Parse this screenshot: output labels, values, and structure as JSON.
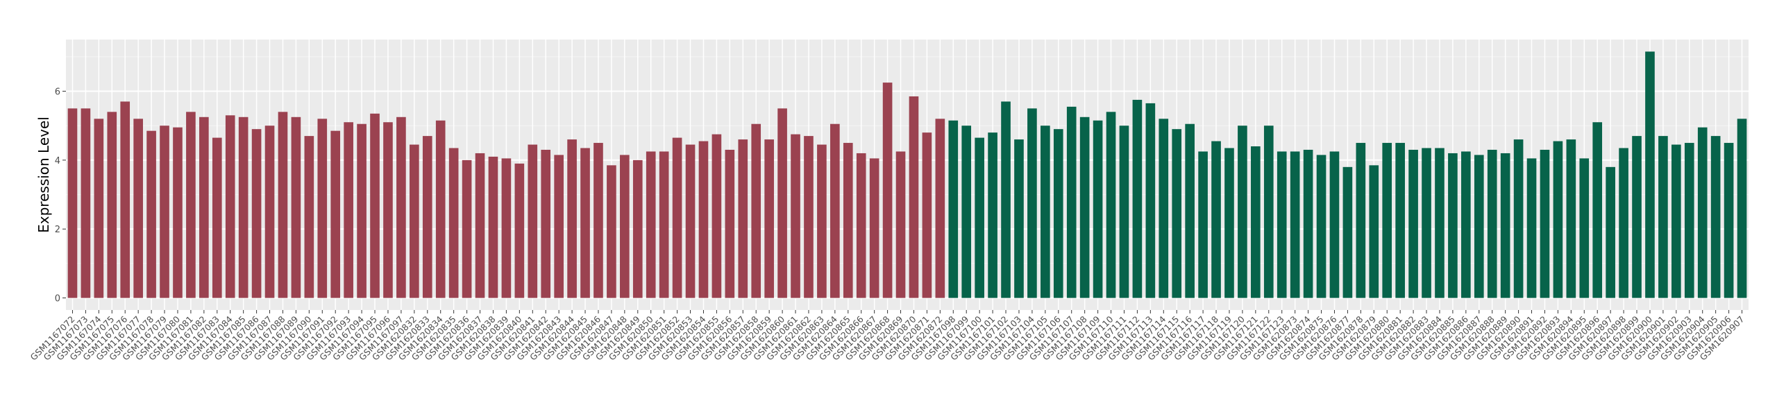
{
  "chart_data": {
    "type": "bar",
    "ylabel": "Expression Level",
    "ylim": [
      -0.35,
      7.5
    ],
    "yticks": [
      0,
      2,
      4,
      6
    ],
    "grid": true,
    "categories": [
      "GSM1167072",
      "GSM1167073",
      "GSM1167074",
      "GSM1167075",
      "GSM1167076",
      "GSM1167077",
      "GSM1167078",
      "GSM1167079",
      "GSM1167080",
      "GSM1167081",
      "GSM1167082",
      "GSM1167083",
      "GSM1167084",
      "GSM1167085",
      "GSM1167086",
      "GSM1167087",
      "GSM1167088",
      "GSM1167089",
      "GSM1167090",
      "GSM1167091",
      "GSM1167092",
      "GSM1167093",
      "GSM1167094",
      "GSM1167095",
      "GSM1167096",
      "GSM1167097",
      "GSM1620832",
      "GSM1620833",
      "GSM1620834",
      "GSM1620835",
      "GSM1620836",
      "GSM1620837",
      "GSM1620838",
      "GSM1620839",
      "GSM1620840",
      "GSM1620841",
      "GSM1620842",
      "GSM1620843",
      "GSM1620844",
      "GSM1620845",
      "GSM1620846",
      "GSM1620847",
      "GSM1620848",
      "GSM1620849",
      "GSM1620850",
      "GSM1620851",
      "GSM1620852",
      "GSM1620853",
      "GSM1620854",
      "GSM1620855",
      "GSM1620856",
      "GSM1620857",
      "GSM1620858",
      "GSM1620859",
      "GSM1620860",
      "GSM1620861",
      "GSM1620862",
      "GSM1620863",
      "GSM1620864",
      "GSM1620865",
      "GSM1620866",
      "GSM1620867",
      "GSM1620868",
      "GSM1620869",
      "GSM1620870",
      "GSM1620871",
      "GSM1620872",
      "GSM1167098",
      "GSM1167099",
      "GSM1167100",
      "GSM1167101",
      "GSM1167102",
      "GSM1167103",
      "GSM1167104",
      "GSM1167105",
      "GSM1167106",
      "GSM1167107",
      "GSM1167108",
      "GSM1167109",
      "GSM1167110",
      "GSM1167111",
      "GSM1167112",
      "GSM1167113",
      "GSM1167114",
      "GSM1167115",
      "GSM1167116",
      "GSM1167117",
      "GSM1167118",
      "GSM1167119",
      "GSM1167120",
      "GSM1167121",
      "GSM1167122",
      "GSM1167123",
      "GSM1620873",
      "GSM1620874",
      "GSM1620875",
      "GSM1620876",
      "GSM1620877",
      "GSM1620878",
      "GSM1620879",
      "GSM1620880",
      "GSM1620881",
      "GSM1620882",
      "GSM1620883",
      "GSM1620884",
      "GSM1620885",
      "GSM1620886",
      "GSM1620887",
      "GSM1620888",
      "GSM1620889",
      "GSM1620890",
      "GSM1620891",
      "GSM1620892",
      "GSM1620893",
      "GSM1620894",
      "GSM1620895",
      "GSM1620896",
      "GSM1620897",
      "GSM1620898",
      "GSM1620899",
      "GSM1620900",
      "GSM1620901",
      "GSM1620902",
      "GSM1620903",
      "GSM1620904",
      "GSM1620905",
      "GSM1620906",
      "GSM1620907"
    ],
    "series": [
      {
        "color": "#9b4250",
        "values": [
          5.5,
          5.5,
          5.2,
          5.4,
          5.7,
          5.2,
          4.85,
          5.0,
          4.95,
          5.4,
          5.25,
          4.65,
          5.3,
          5.25,
          4.9,
          5.0,
          5.4,
          5.25,
          4.7,
          5.2,
          4.85,
          5.1,
          5.05,
          5.35,
          5.1,
          5.25,
          4.45,
          4.7,
          5.15,
          4.35,
          4.0,
          4.2,
          4.1,
          4.05,
          3.9,
          4.45,
          4.3,
          4.15,
          4.6,
          4.35,
          4.5,
          3.85,
          4.15,
          4.0,
          4.25,
          4.25,
          4.65,
          4.45,
          4.55,
          4.75,
          4.3,
          4.6,
          5.05,
          4.6,
          5.5,
          4.75,
          4.7,
          4.45,
          5.05,
          4.5,
          4.2,
          4.05,
          6.25,
          4.25,
          5.85,
          4.8,
          5.2,
          null,
          null,
          null,
          null,
          null,
          null,
          null,
          null,
          null,
          null,
          null,
          null,
          null,
          null,
          null,
          null,
          null,
          null,
          null,
          null,
          null,
          null,
          null,
          null,
          null,
          null,
          null,
          null,
          null,
          null,
          null,
          null,
          null,
          null,
          null,
          null,
          null,
          null,
          null,
          null,
          null,
          null,
          null,
          null,
          null,
          null,
          null,
          null,
          null,
          null,
          null,
          null,
          null,
          null,
          null,
          null,
          null,
          null,
          null,
          null,
          null
        ]
      },
      {
        "color": "#07634a",
        "values": [
          null,
          null,
          null,
          null,
          null,
          null,
          null,
          null,
          null,
          null,
          null,
          null,
          null,
          null,
          null,
          null,
          null,
          null,
          null,
          null,
          null,
          null,
          null,
          null,
          null,
          null,
          null,
          null,
          null,
          null,
          null,
          null,
          null,
          null,
          null,
          null,
          null,
          null,
          null,
          null,
          null,
          null,
          null,
          null,
          null,
          null,
          null,
          null,
          null,
          null,
          null,
          null,
          null,
          null,
          null,
          null,
          null,
          null,
          null,
          null,
          null,
          null,
          null,
          null,
          null,
          null,
          null,
          5.15,
          5.0,
          4.65,
          4.8,
          5.7,
          4.6,
          5.5,
          5.0,
          4.9,
          5.55,
          5.25,
          5.15,
          5.4,
          5.0,
          5.75,
          5.65,
          5.2,
          4.9,
          5.05,
          4.25,
          4.55,
          4.35,
          5.0,
          4.4,
          5.0,
          4.25,
          4.25,
          4.3,
          4.15,
          4.25,
          3.8,
          4.5,
          3.85,
          4.5,
          4.5,
          4.3,
          4.35,
          4.35,
          4.2,
          4.25,
          4.15,
          4.3,
          4.2,
          4.6,
          4.05,
          4.3,
          4.55,
          4.6,
          4.05,
          5.1,
          3.8,
          4.35,
          4.7,
          7.15,
          4.7,
          4.45,
          4.5,
          4.95,
          4.7,
          4.5,
          5.2
        ]
      }
    ]
  }
}
